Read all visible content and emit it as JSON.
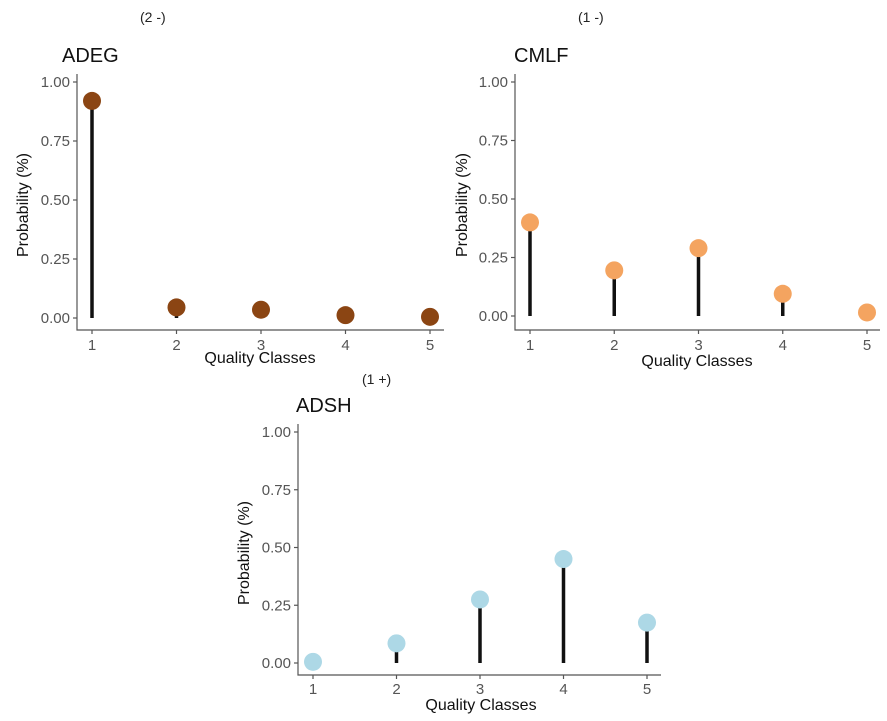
{
  "chart_data": [
    {
      "type": "lollipop",
      "annotation": "(2 -)",
      "title": "ADEG",
      "xlabel": "Quality Classes",
      "ylabel": "Probability (%)",
      "categories": [
        "1",
        "2",
        "3",
        "4",
        "5"
      ],
      "values": [
        0.92,
        0.045,
        0.035,
        0.012,
        0.005
      ],
      "ylim": [
        0,
        1
      ],
      "yticks": [
        "0.00",
        "0.25",
        "0.50",
        "0.75",
        "1.00"
      ],
      "color": "#8b4513"
    },
    {
      "type": "lollipop",
      "annotation": "(1 -)",
      "title": "CMLF",
      "xlabel": "Quality Classes",
      "ylabel": "Probability (%)",
      "categories": [
        "1",
        "2",
        "3",
        "4",
        "5"
      ],
      "values": [
        0.4,
        0.195,
        0.29,
        0.095,
        0.015
      ],
      "ylim": [
        0,
        1
      ],
      "yticks": [
        "0.00",
        "0.25",
        "0.50",
        "0.75",
        "1.00"
      ],
      "color": "#f4a460"
    },
    {
      "type": "lollipop",
      "annotation": "(1 +)",
      "title": "ADSH",
      "xlabel": "Quality Classes",
      "ylabel": "Probability (%)",
      "categories": [
        "1",
        "2",
        "3",
        "4",
        "5"
      ],
      "values": [
        0.005,
        0.085,
        0.275,
        0.45,
        0.175
      ],
      "ylim": [
        0,
        1
      ],
      "yticks": [
        "0.00",
        "0.25",
        "0.50",
        "0.75",
        "1.00"
      ],
      "color": "#add8e6"
    }
  ]
}
